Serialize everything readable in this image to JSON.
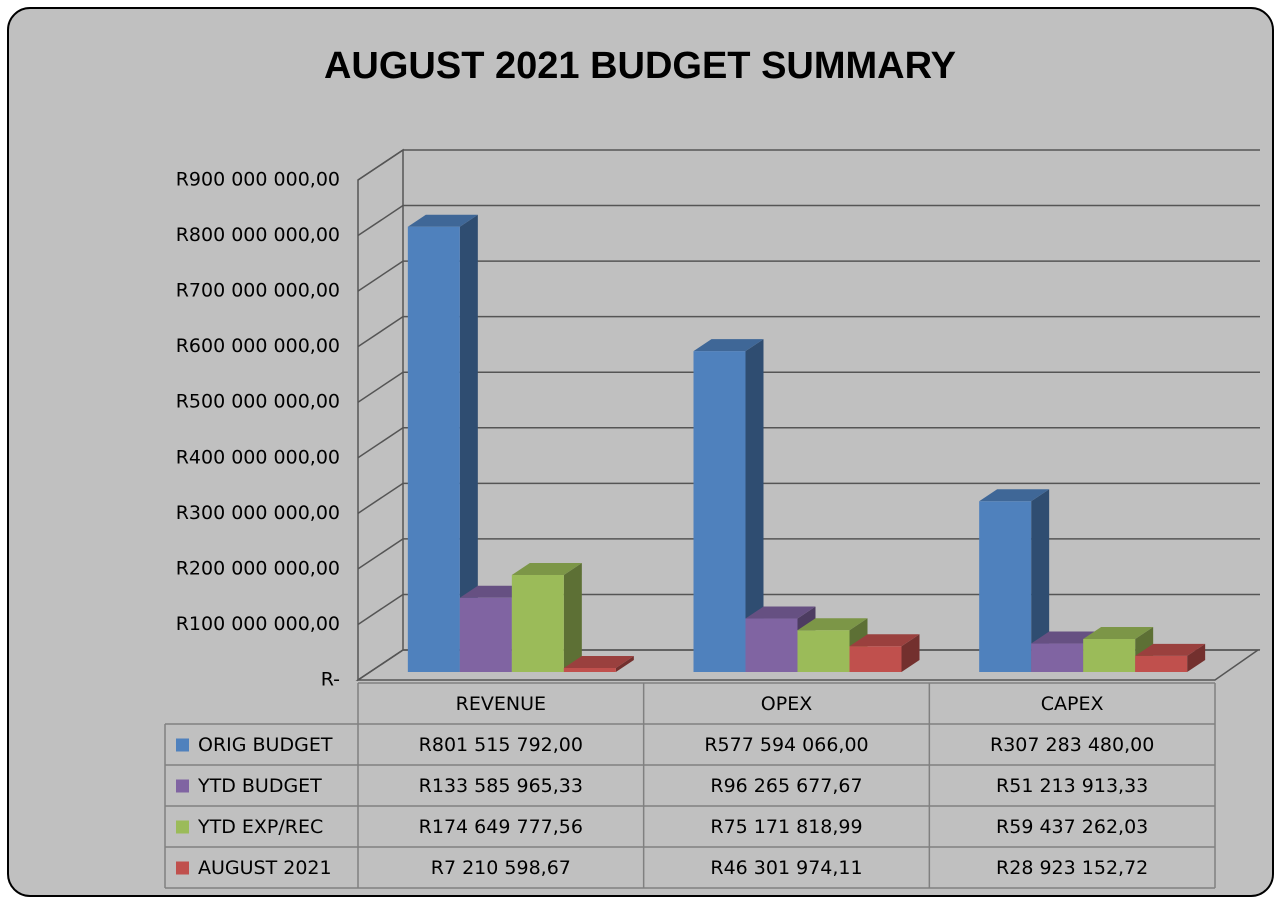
{
  "chart_data": {
    "type": "bar3d",
    "title": "AUGUST 2021 BUDGET SUMMARY",
    "categories": [
      "REVENUE",
      "OPEX",
      "CAPEX"
    ],
    "series": [
      {
        "name": "ORIG BUDGET",
        "color": "#4f81bd",
        "values": [
          801515792.0,
          577594066.0,
          307283480.0
        ],
        "value_labels": [
          "R801 515 792,00",
          "R577 594 066,00",
          "R307 283 480,00"
        ]
      },
      {
        "name": "YTD BUDGET",
        "color": "#8064a2",
        "values": [
          133585965.33,
          96265677.67,
          51213913.33
        ],
        "value_labels": [
          "R133 585 965,33",
          "R96 265 677,67",
          "R51 213 913,33"
        ]
      },
      {
        "name": "YTD EXP/REC",
        "color": "#9bbb59",
        "values": [
          174649777.56,
          75171818.99,
          59437262.03
        ],
        "value_labels": [
          "R174 649 777,56",
          "R75 171 818,99",
          "R59 437 262,03"
        ]
      },
      {
        "name": "AUGUST 2021",
        "color": "#c0504d",
        "values": [
          7210598.67,
          46301974.11,
          28923152.72
        ],
        "value_labels": [
          "R7 210 598,67",
          "R46 301 974,11",
          "R28 923 152,72"
        ]
      }
    ],
    "ylim": [
      0,
      900000000
    ],
    "yticks": [
      {
        "value": 0,
        "label": "R-"
      },
      {
        "value": 100000000,
        "label": "R100 000 000,00"
      },
      {
        "value": 200000000,
        "label": "R200 000 000,00"
      },
      {
        "value": 300000000,
        "label": "R300 000 000,00"
      },
      {
        "value": 400000000,
        "label": "R400 000 000,00"
      },
      {
        "value": 500000000,
        "label": "R500 000 000,00"
      },
      {
        "value": 600000000,
        "label": "R600 000 000,00"
      },
      {
        "value": 700000000,
        "label": "R700 000 000,00"
      },
      {
        "value": 800000000,
        "label": "R800 000 000,00"
      },
      {
        "value": 900000000,
        "label": "R900 000 000,00"
      }
    ],
    "grid": true,
    "data_table": true
  }
}
